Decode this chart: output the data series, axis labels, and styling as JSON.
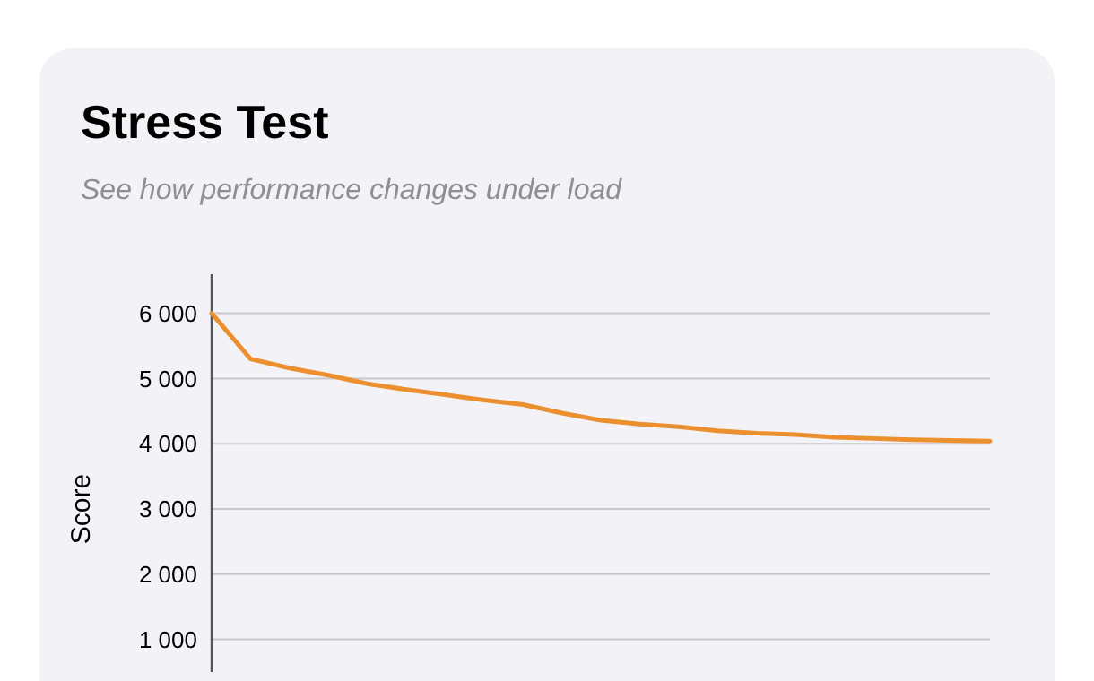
{
  "chart_data": {
    "type": "line",
    "title": "Stress Test",
    "subtitle": "See how performance changes under load",
    "ylabel": "Score",
    "categories": [
      null,
      null,
      null,
      null,
      null,
      null,
      null,
      null,
      null,
      null,
      null,
      null,
      null,
      null,
      null,
      null,
      null,
      null,
      null,
      null,
      null
    ],
    "series": [
      {
        "color": "#ec8f2e",
        "values": [
          6000,
          5300,
          5160,
          5050,
          4920,
          4830,
          4750,
          4670,
          4600,
          4470,
          4360,
          4300,
          4260,
          4200,
          4160,
          4140,
          4100,
          4080,
          4060,
          4050,
          4040
        ]
      }
    ],
    "ylim": [
      500,
      6600
    ],
    "yticks": [
      {
        "value": 1000,
        "label": "1 000"
      },
      {
        "value": 2000,
        "label": "2 000"
      },
      {
        "value": 3000,
        "label": "3 000"
      },
      {
        "value": 4000,
        "label": "4 000"
      },
      {
        "value": 5000,
        "label": "5 000"
      },
      {
        "value": 6000,
        "label": "6 000"
      }
    ],
    "grid": "y",
    "marker": "none",
    "line_style": "solid",
    "tick_labels": "y"
  }
}
